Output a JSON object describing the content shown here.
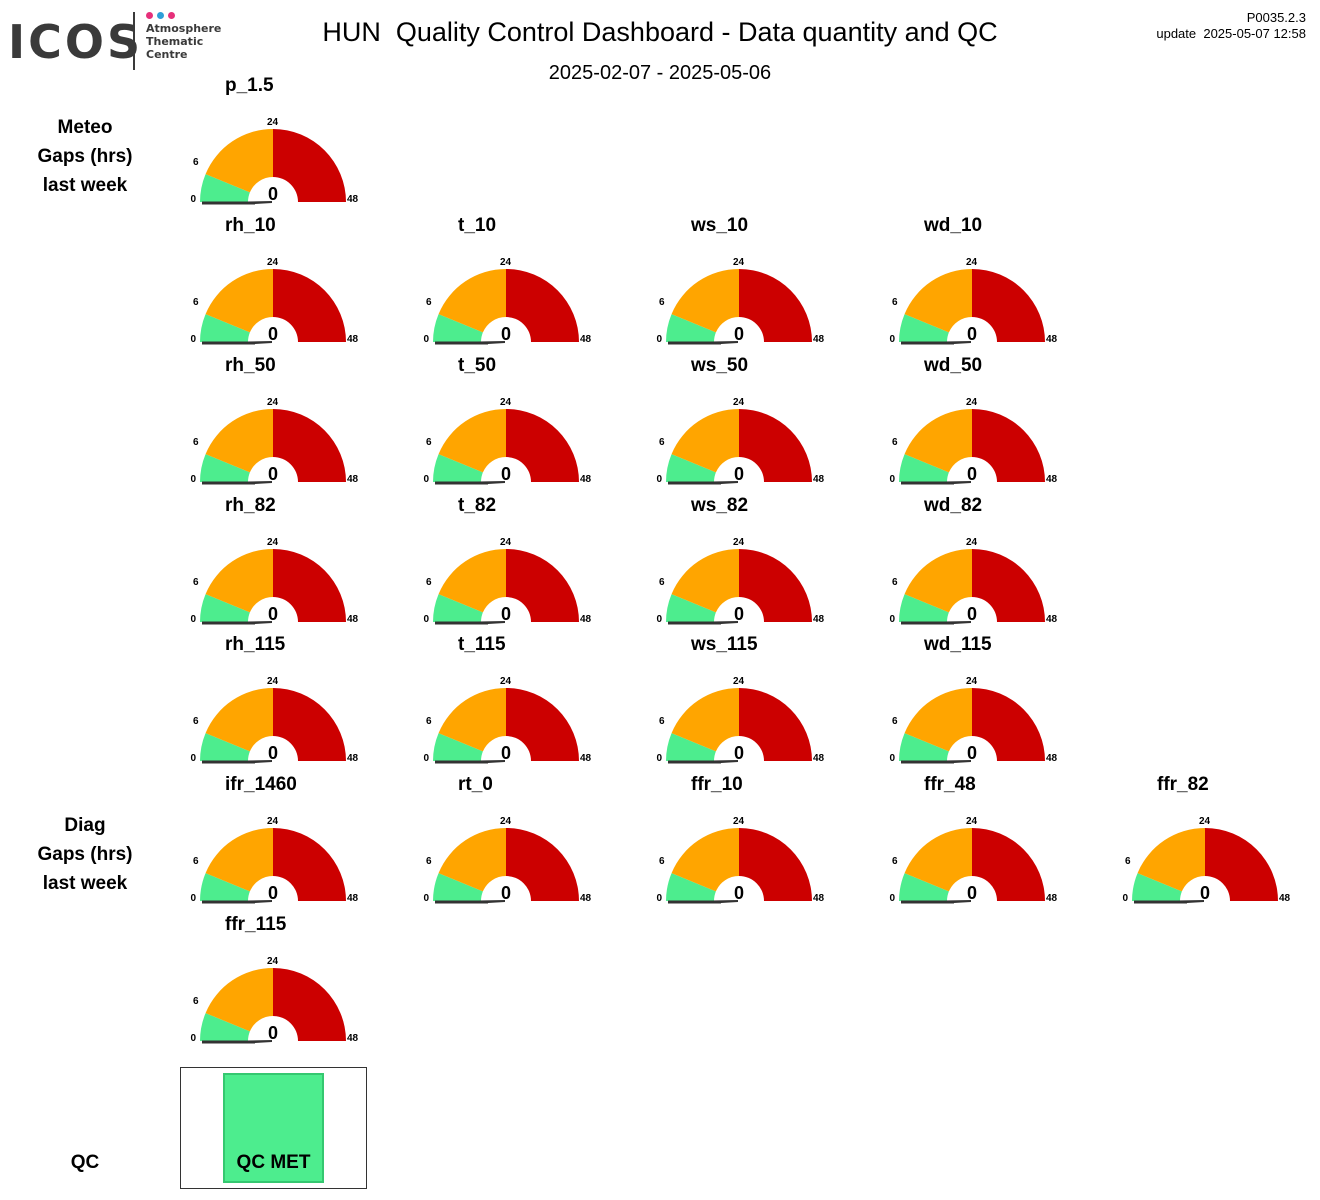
{
  "logo": {
    "word": "ICOS",
    "lines": [
      "Atmosphere",
      "Thematic",
      "Centre"
    ]
  },
  "header": {
    "title": "HUN  Quality Control Dashboard - Data quantity and QC",
    "date_range": "2025-02-07 - 2025-05-06",
    "version": "P0035.2.3",
    "update": "update  2025-05-07 12:58"
  },
  "sections": {
    "meteo": [
      "Meteo",
      "Gaps (hrs)",
      "last week"
    ],
    "diag": [
      "Diag",
      "Gaps (hrs)",
      "last week"
    ],
    "qc": "QC"
  },
  "gauge_scale": {
    "ticks": [
      "0",
      "6",
      "24",
      "48"
    ],
    "min": 0,
    "max": 48,
    "green_max": 6,
    "orange_max": 24
  },
  "colors": {
    "green": "#4ded8e",
    "orange": "#ffa500",
    "red": "#cc0000",
    "needle": "#333333"
  },
  "gauges": [
    {
      "name": "p_1.5",
      "value": 0
    },
    {
      "name": "rh_10",
      "value": 0
    },
    {
      "name": "t_10",
      "value": 0
    },
    {
      "name": "ws_10",
      "value": 0
    },
    {
      "name": "wd_10",
      "value": 0
    },
    {
      "name": "rh_50",
      "value": 0
    },
    {
      "name": "t_50",
      "value": 0
    },
    {
      "name": "ws_50",
      "value": 0
    },
    {
      "name": "wd_50",
      "value": 0
    },
    {
      "name": "rh_82",
      "value": 0
    },
    {
      "name": "t_82",
      "value": 0
    },
    {
      "name": "ws_82",
      "value": 0
    },
    {
      "name": "wd_82",
      "value": 0
    },
    {
      "name": "rh_115",
      "value": 0
    },
    {
      "name": "t_115",
      "value": 0
    },
    {
      "name": "ws_115",
      "value": 0
    },
    {
      "name": "wd_115",
      "value": 0
    },
    {
      "name": "ifr_1460",
      "value": 0
    },
    {
      "name": "rt_0",
      "value": 0
    },
    {
      "name": "ffr_10",
      "value": 0
    },
    {
      "name": "ffr_48",
      "value": 0
    },
    {
      "name": "ffr_82",
      "value": 0
    },
    {
      "name": "ffr_115",
      "value": 0
    }
  ],
  "qc": {
    "status": "QC MET"
  }
}
